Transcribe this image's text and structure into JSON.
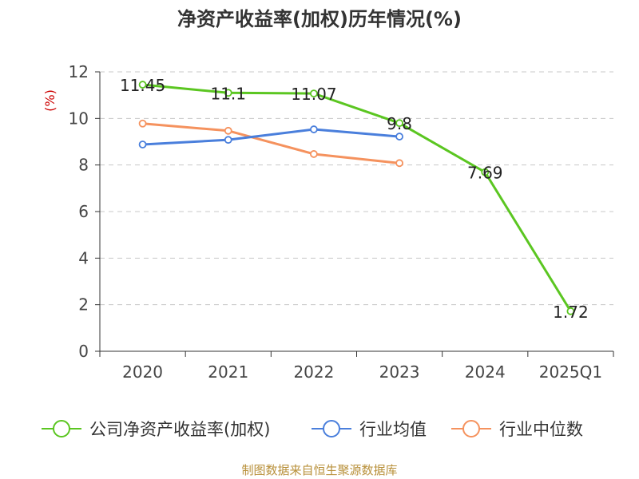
{
  "chart_data": {
    "type": "line",
    "title": "净资产收益率(加权)历年情况(%)",
    "ylabel": "(%)",
    "xlabel": "",
    "categories": [
      "2020",
      "2021",
      "2022",
      "2023",
      "2024",
      "2025Q1"
    ],
    "ylim": [
      0,
      12
    ],
    "yticks": [
      0,
      2,
      4,
      6,
      8,
      10,
      12
    ],
    "grid": true,
    "legend_position": "bottom",
    "series": [
      {
        "name": "公司净资产收益率(加权)",
        "color": "#5bc621",
        "values": [
          11.45,
          11.1,
          11.07,
          9.8,
          7.69,
          1.72
        ],
        "labels": [
          "11.45",
          "11.1",
          "11.07",
          "9.8",
          "7.69",
          "1.72"
        ]
      },
      {
        "name": "行业均值",
        "color": "#4a7fdc",
        "values": [
          8.88,
          9.08,
          9.53,
          9.22,
          null,
          null
        ]
      },
      {
        "name": "行业中位数",
        "color": "#f5925e",
        "values": [
          9.78,
          9.47,
          8.47,
          8.08,
          null,
          null
        ]
      }
    ]
  },
  "footer": "制图数据来自恒生聚源数据库"
}
